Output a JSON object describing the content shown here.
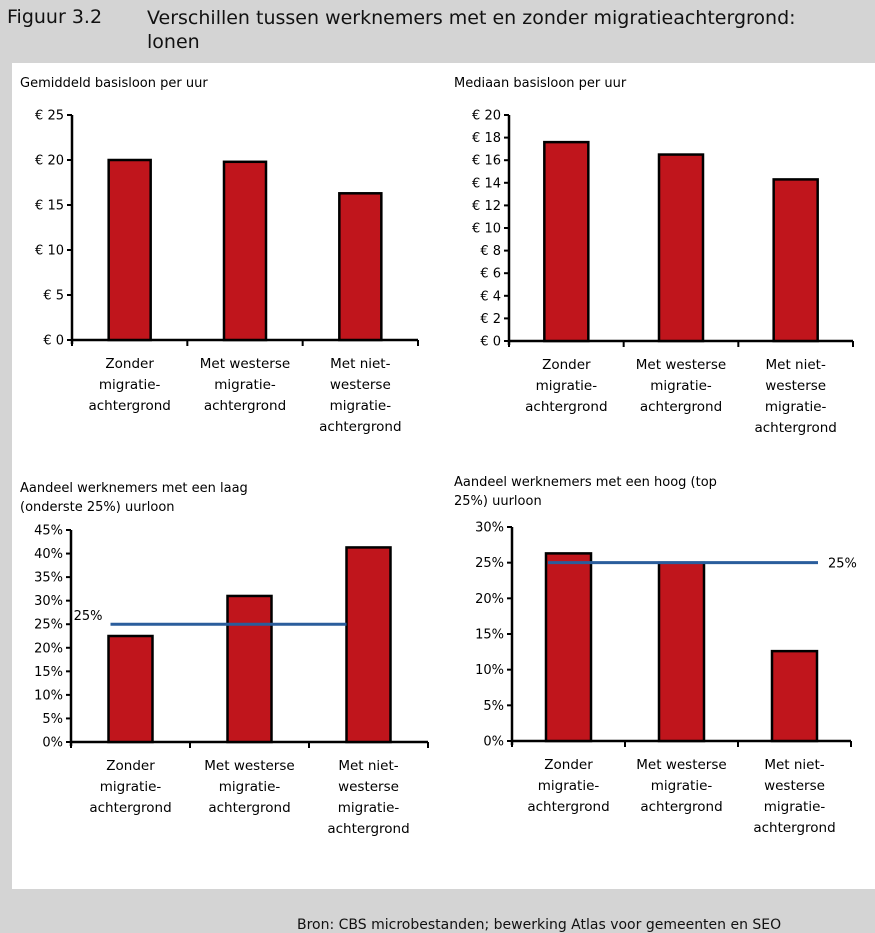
{
  "figure": {
    "number": "Figuur 3.2",
    "title": "Verschillen tussen werknemers met en zonder migratieachtergrond: lonen",
    "source": "Bron: CBS microbestanden; bewerking Atlas voor gemeenten en SEO"
  },
  "colors": {
    "bar": "#c0151c",
    "reference_line": "#2a5d9c",
    "panel": "#ffffff",
    "frame": "#d4d4d4"
  },
  "chart_data": [
    {
      "type": "bar",
      "title": "Gemiddeld basisloon per uur",
      "categories": [
        [
          "Zonder",
          "migratie-",
          "achtergrond"
        ],
        [
          "Met westerse",
          "migratie-",
          "achtergrond"
        ],
        [
          "Met niet-",
          "westerse",
          "migratie-",
          "achtergrond"
        ]
      ],
      "values": [
        20,
        19.8,
        16.3
      ],
      "ylim": [
        0,
        25
      ],
      "ytick_values": [
        0,
        5,
        10,
        15,
        20,
        25
      ],
      "ytick_labels": [
        "€ 0",
        "€ 5",
        "€ 10",
        "€ 15",
        "€ 20",
        "€ 25"
      ]
    },
    {
      "type": "bar",
      "title": "Mediaan basisloon per uur",
      "categories": [
        [
          "Zonder",
          "migratie-",
          "achtergrond"
        ],
        [
          "Met westerse",
          "migratie-",
          "achtergrond"
        ],
        [
          "Met niet-",
          "westerse",
          "migratie-",
          "achtergrond"
        ]
      ],
      "values": [
        17.6,
        16.5,
        14.3
      ],
      "ylim": [
        0,
        20
      ],
      "ytick_values": [
        0,
        2,
        4,
        6,
        8,
        10,
        12,
        14,
        16,
        18,
        20
      ],
      "ytick_labels": [
        "€ 0",
        "€ 2",
        "€ 4",
        "€ 6",
        "€ 8",
        "€ 10",
        "€ 12",
        "€ 14",
        "€ 16",
        "€ 18",
        "€ 20"
      ]
    },
    {
      "type": "bar",
      "title": [
        "Aandeel werknemers met een laag",
        "(onderste 25%) uurloon"
      ],
      "categories": [
        [
          "Zonder",
          "migratie-",
          "achtergrond"
        ],
        [
          "Met westerse",
          "migratie-",
          "achtergrond"
        ],
        [
          "Met niet-",
          "westerse",
          "migratie-",
          "achtergrond"
        ]
      ],
      "values": [
        22.5,
        31,
        41.3
      ],
      "unit": "%",
      "ylim": [
        0,
        45
      ],
      "ytick_values": [
        0,
        5,
        10,
        15,
        20,
        25,
        30,
        35,
        40,
        45
      ],
      "ytick_labels": [
        "0%",
        "5%",
        "10%",
        "15%",
        "20%",
        "25%",
        "30%",
        "35%",
        "40%",
        "45%"
      ],
      "reference_line": {
        "value": 25,
        "label": "25%",
        "label_side": "left"
      }
    },
    {
      "type": "bar",
      "title": [
        "Aandeel werknemers met een hoog (top",
        "25%) uurloon"
      ],
      "categories": [
        [
          "Zonder",
          "migratie-",
          "achtergrond"
        ],
        [
          "Met westerse",
          "migratie-",
          "achtergrond"
        ],
        [
          "Met niet-",
          "westerse",
          "migratie-",
          "achtergrond"
        ]
      ],
      "values": [
        26.3,
        25,
        12.6
      ],
      "unit": "%",
      "ylim": [
        0,
        30
      ],
      "ytick_values": [
        0,
        5,
        10,
        15,
        20,
        25,
        30
      ],
      "ytick_labels": [
        "0%",
        "5%",
        "10%",
        "15%",
        "20%",
        "25%",
        "30%"
      ],
      "reference_line": {
        "value": 25,
        "label": "25%",
        "label_side": "right"
      }
    }
  ]
}
